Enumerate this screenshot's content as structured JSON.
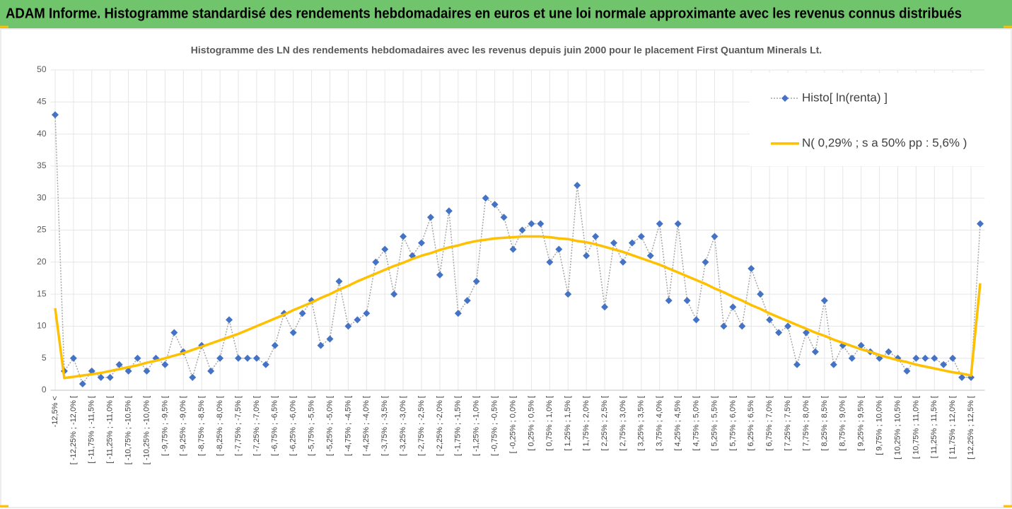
{
  "header": {
    "title": "ADAM Informe. Histogramme standardisé des rendements hebdomadaires en euros et une loi normale approximante avec les revenus connus distribués"
  },
  "chart_data": {
    "type": "line",
    "title": "Histogramme des LN des rendements hebdomadaires avec les revenus depuis juin 2000 pour le placement First  Quantum Minerals Lt.",
    "categories": [
      "-12,5% <",
      null,
      "[ -12,25% ; -12,0% [",
      null,
      "[ -11,75% ; -11,5% [",
      null,
      "[ -11,25% ; -11,0% [",
      null,
      "[ -10,75% ; -10,5% [",
      null,
      "[ -10,25% ; -10,0% [",
      null,
      "[ -9,75% ; -9,5% [",
      null,
      "[ -9,25% ; -9,0% [",
      null,
      "[ -8,75% ; -8,5% [",
      null,
      "[ -8,25% ; -8,0% [",
      null,
      "[ -7,75% ; -7,5% [",
      null,
      "[ -7,25% ; -7,0% [",
      null,
      "[ -6,75% ; -6,5% [",
      null,
      "[ -6,25% ; -6,0% [",
      null,
      "[ -5,75% ; -5,5% [",
      null,
      "[ -5,25% ; -5,0% [",
      null,
      "[ -4,75% ; -4,5% [",
      null,
      "[ -4,25% ; -4,0% [",
      null,
      "[ -3,75% ; -3,5% [",
      null,
      "[ -3,25% ; -3,0% [",
      null,
      "[ -2,75% ; -2,5% [",
      null,
      "[ -2,25% ; -2,0% [",
      null,
      "[ -1,75% ; -1,5% [",
      null,
      "[ -1,25% ; -1,0% [",
      null,
      "[ -0,75% ; -0,5% [",
      null,
      "[ -0,25% ; 0,0% [",
      null,
      "[ 0,25% ; 0,5% [",
      null,
      "[ 0,75% ; 1,0% [",
      null,
      "[ 1,25% ; 1,5% [",
      null,
      "[ 1,75% ; 2,0% [",
      null,
      "[ 2,25% ; 2,5% [",
      null,
      "[ 2,75% ; 3,0% [",
      null,
      "[ 3,25% ; 3,5% [",
      null,
      "[ 3,75% ; 4,0% [",
      null,
      "[ 4,25% ; 4,5% [",
      null,
      "[ 4,75% ; 5,0% [",
      null,
      "[ 5,25% ; 5,5% [",
      null,
      "[ 5,75% ; 6,0% [",
      null,
      "[ 6,25% ; 6,5% [",
      null,
      "[ 6,75% ; 7,0% [",
      null,
      "[ 7,25% ; 7,5% [",
      null,
      "[ 7,75% ; 8,0% [",
      null,
      "[ 8,25% ; 8,5% [",
      null,
      "[ 8,75% ; 9,0% [",
      null,
      "[ 9,25% ; 9,5% [",
      null,
      "[ 9,75% ; 10,0% [",
      null,
      "[ 10,25% ; 10,5% [",
      null,
      "[ 10,75% ; 11,0% [",
      null,
      "[ 11,25% ; 11,5% [",
      null,
      "[ 11,75% ; 12,0% [",
      null,
      "[ 12,25% ; 12,5% [",
      null
    ],
    "series": [
      {
        "name": "Histo[ ln(renta) ]",
        "color": "#4472c4",
        "line_color": "#a6a6a6",
        "values": [
          43,
          3,
          5,
          1,
          3,
          2,
          2,
          4,
          3,
          5,
          3,
          5,
          4,
          9,
          6,
          2,
          7,
          3,
          5,
          11,
          5,
          5,
          5,
          4,
          7,
          12,
          9,
          12,
          14,
          7,
          8,
          17,
          10,
          11,
          12,
          20,
          22,
          15,
          24,
          21,
          23,
          27,
          18,
          28,
          12,
          14,
          17,
          30,
          29,
          27,
          22,
          25,
          26,
          26,
          20,
          22,
          15,
          32,
          21,
          24,
          13,
          23,
          20,
          23,
          24,
          21,
          26,
          14,
          26,
          14,
          11,
          20,
          24,
          10,
          13,
          10,
          19,
          15,
          11,
          9,
          10,
          4,
          9,
          6,
          14,
          4,
          7,
          5,
          7,
          6,
          5,
          6,
          5,
          3,
          5,
          5,
          5,
          4,
          5,
          2,
          2,
          26
        ]
      },
      {
        "name": "N( 0,29% ; s a 50% pp : 5,6% )",
        "color": "#ffc000",
        "values": [
          12.8,
          1.9,
          2.1,
          2.3,
          2.5,
          2.7,
          3.0,
          3.3,
          3.6,
          3.9,
          4.3,
          4.6,
          5.0,
          5.4,
          5.8,
          6.3,
          6.8,
          7.3,
          7.8,
          8.3,
          8.8,
          9.4,
          10.0,
          10.6,
          11.2,
          11.8,
          12.5,
          13.1,
          13.7,
          14.4,
          15.0,
          15.7,
          16.3,
          17.0,
          17.6,
          18.2,
          18.8,
          19.4,
          19.9,
          20.5,
          21.0,
          21.4,
          21.9,
          22.3,
          22.6,
          23.0,
          23.3,
          23.5,
          23.7,
          23.8,
          23.9,
          24.0,
          24.0,
          24.0,
          23.9,
          23.7,
          23.6,
          23.3,
          23.1,
          22.8,
          22.4,
          22.0,
          21.6,
          21.1,
          20.6,
          20.1,
          19.6,
          19.0,
          18.4,
          17.8,
          17.2,
          16.6,
          15.9,
          15.3,
          14.6,
          14.0,
          13.3,
          12.7,
          12.0,
          11.4,
          10.8,
          10.2,
          9.6,
          9.0,
          8.5,
          7.9,
          7.4,
          6.9,
          6.4,
          6.0,
          5.5,
          5.1,
          4.7,
          4.4,
          4.0,
          3.7,
          3.4,
          3.1,
          2.8,
          2.6,
          2.3,
          16.7
        ]
      }
    ],
    "ylim": [
      0,
      50
    ],
    "yticks": [
      0,
      5,
      10,
      15,
      20,
      25,
      30,
      35,
      40,
      45,
      50
    ],
    "grid": true,
    "legend": "top-right"
  }
}
